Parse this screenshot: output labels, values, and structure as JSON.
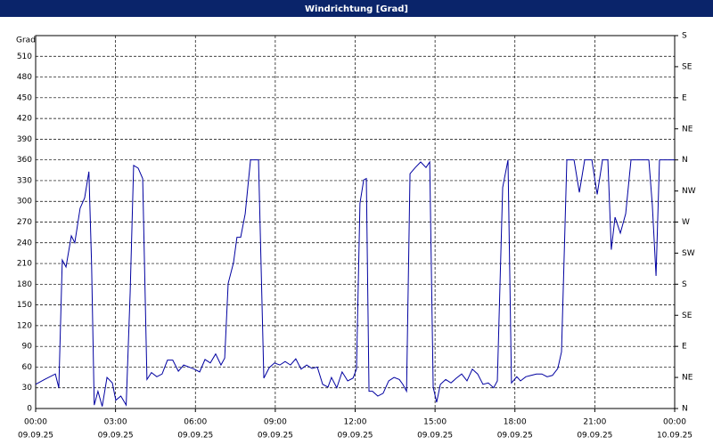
{
  "chart_data": {
    "type": "line",
    "title": "Windrichtung [Grad]",
    "ylabel": "Grad",
    "x": [
      0,
      0.33,
      0.74,
      0.87,
      1.0,
      1.14,
      1.34,
      1.47,
      1.67,
      1.84,
      2.0,
      2.1,
      2.2,
      2.34,
      2.5,
      2.68,
      2.88,
      3.01,
      3.2,
      3.4,
      3.55,
      3.68,
      3.85,
      4.02,
      4.18,
      4.35,
      4.55,
      4.75,
      4.95,
      5.15,
      5.36,
      5.56,
      5.76,
      5.96,
      6.16,
      6.36,
      6.56,
      6.76,
      6.96,
      7.1,
      7.23,
      7.43,
      7.56,
      7.7,
      7.87,
      8.07,
      8.37,
      8.57,
      8.77,
      8.97,
      9.17,
      9.37,
      9.57,
      9.77,
      9.97,
      10.18,
      10.38,
      10.58,
      10.78,
      10.98,
      11.11,
      11.31,
      11.51,
      11.72,
      11.92,
      12.05,
      12.18,
      12.32,
      12.42,
      12.52,
      12.65,
      12.85,
      13.05,
      13.26,
      13.46,
      13.66,
      13.79,
      13.93,
      14.06,
      14.26,
      14.46,
      14.66,
      14.8,
      14.93,
      15.06,
      15.2,
      15.4,
      15.6,
      15.8,
      16.0,
      16.2,
      16.4,
      16.6,
      16.8,
      17.0,
      17.2,
      17.34,
      17.54,
      17.74,
      17.87,
      18.07,
      18.21,
      18.41,
      18.61,
      18.81,
      19.01,
      19.21,
      19.41,
      19.61,
      19.75,
      19.95,
      20.22,
      20.42,
      20.62,
      20.89,
      21.09,
      21.29,
      21.49,
      21.62,
      21.76,
      21.96,
      22.16,
      22.36,
      23.03,
      23.16,
      23.3,
      23.43,
      24.0
    ],
    "series": [
      {
        "name": "Windrichtung",
        "color": "#0000a0",
        "values": [
          35,
          42,
          50,
          30,
          215,
          205,
          250,
          240,
          290,
          305,
          343,
          210,
          5,
          25,
          3,
          45,
          37,
          12,
          18,
          5,
          168,
          352,
          348,
          333,
          42,
          52,
          46,
          50,
          70,
          70,
          54,
          63,
          60,
          57,
          53,
          71,
          66,
          79,
          63,
          73,
          181,
          211,
          248,
          248,
          282,
          360,
          360,
          44,
          59,
          66,
          63,
          68,
          63,
          72,
          57,
          63,
          58,
          60,
          35,
          31,
          45,
          30,
          53,
          40,
          44,
          57,
          297,
          331,
          333,
          25,
          25,
          18,
          22,
          40,
          45,
          42,
          35,
          25,
          340,
          349,
          357,
          349,
          357,
          31,
          9,
          35,
          42,
          37,
          44,
          50,
          40,
          57,
          50,
          35,
          37,
          30,
          40,
          320,
          360,
          37,
          46,
          40,
          46,
          48,
          50,
          50,
          46,
          48,
          58,
          82,
          360,
          360,
          313,
          360,
          360,
          310,
          360,
          360,
          230,
          277,
          254,
          282,
          360,
          360,
          295,
          192,
          360,
          360
        ]
      }
    ],
    "xlim": [
      0,
      24
    ],
    "xticks": [
      {
        "value": 0,
        "label": "00:00",
        "date": "09.09.25"
      },
      {
        "value": 3,
        "label": "03:00",
        "date": "09.09.25"
      },
      {
        "value": 6,
        "label": "06:00",
        "date": "09.09.25"
      },
      {
        "value": 9,
        "label": "09:00",
        "date": "09.09.25"
      },
      {
        "value": 12,
        "label": "12:00",
        "date": "09.09.25"
      },
      {
        "value": 15,
        "label": "15:00",
        "date": "09.09.25"
      },
      {
        "value": 18,
        "label": "18:00",
        "date": "09.09.25"
      },
      {
        "value": 21,
        "label": "21:00",
        "date": "09.09.25"
      },
      {
        "value": 24,
        "label": "00:00",
        "date": "10.09.25"
      }
    ],
    "ylim": [
      0,
      540
    ],
    "yticks": [
      0,
      30,
      60,
      90,
      120,
      150,
      180,
      210,
      240,
      270,
      300,
      330,
      360,
      390,
      420,
      450,
      480,
      510
    ],
    "y2lim": [
      0,
      540
    ],
    "y2ticks": [
      {
        "value": 0,
        "label": "N"
      },
      {
        "value": 45,
        "label": "NE"
      },
      {
        "value": 90,
        "label": "E"
      },
      {
        "value": 135,
        "label": "SE"
      },
      {
        "value": 180,
        "label": "S"
      },
      {
        "value": 225,
        "label": "SW"
      },
      {
        "value": 270,
        "label": "W"
      },
      {
        "value": 315,
        "label": "NW"
      },
      {
        "value": 360,
        "label": "N"
      },
      {
        "value": 405,
        "label": "NE"
      },
      {
        "value": 450,
        "label": "E"
      },
      {
        "value": 495,
        "label": "SE"
      },
      {
        "value": 540,
        "label": "S"
      }
    ],
    "grid": true
  }
}
